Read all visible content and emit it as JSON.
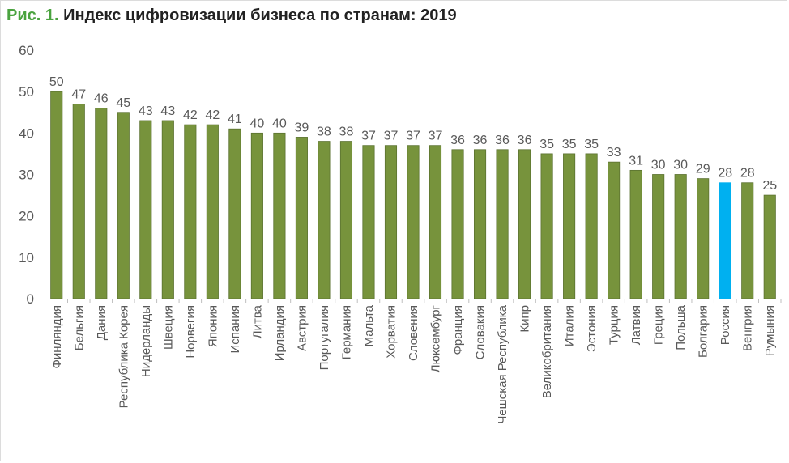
{
  "figure": {
    "number": "Рис. 1.",
    "title": "Индекс цифровизации бизнеса по странам: 2019"
  },
  "colors": {
    "bar": "#77933c",
    "bar_border": "#5b7230",
    "highlight": "#00b0f0",
    "title_number": "#4aa33f",
    "axis_text": "#595959",
    "axis_line": "#bfbfbf"
  },
  "chart_data": {
    "type": "bar",
    "title": "Индекс цифровизации бизнеса по странам: 2019",
    "xlabel": "",
    "ylabel": "",
    "ylim": [
      0,
      60
    ],
    "yticks": [
      0,
      10,
      20,
      30,
      40,
      50,
      60
    ],
    "grid": false,
    "legend": "none",
    "highlight_category": "Россия",
    "categories": [
      "Финляндия",
      "Бельгия",
      "Дания",
      "Республика Корея",
      "Нидерланды",
      "Швеция",
      "Норвегия",
      "Япония",
      "Испания",
      "Литва",
      "Ирландия",
      "Австрия",
      "Португалия",
      "Германия",
      "Мальта",
      "Хорватия",
      "Словения",
      "Люксембург",
      "Франция",
      "Словакия",
      "Чешская Республика",
      "Кипр",
      "Великобритания",
      "Италия",
      "Эстония",
      "Турция",
      "Латвия",
      "Греция",
      "Польша",
      "Болгария",
      "Россия",
      "Венгрия",
      "Румыния"
    ],
    "values": [
      50,
      47,
      46,
      45,
      43,
      43,
      42,
      42,
      41,
      40,
      40,
      39,
      38,
      38,
      37,
      37,
      37,
      37,
      36,
      36,
      36,
      36,
      35,
      35,
      35,
      33,
      31,
      30,
      30,
      29,
      28,
      28,
      25
    ]
  }
}
